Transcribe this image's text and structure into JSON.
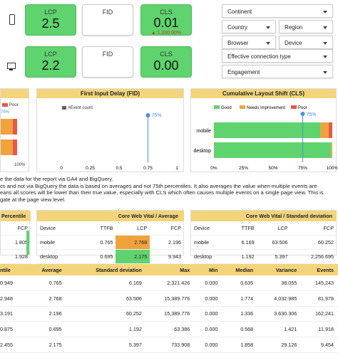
{
  "tiles": {
    "mobile": {
      "lcp_label": "LCP",
      "lcp_value": "2.5",
      "fid_label": "FID",
      "cls_label": "CLS",
      "cls_value": "0.01",
      "cls_change": "▲ 1,200.00%"
    },
    "desktop": {
      "lcp_label": "LCP",
      "lcp_value": "2.2",
      "fid_label": "FID",
      "cls_label": "CLS",
      "cls_value": "0.00"
    }
  },
  "filters": {
    "continent": "Continent",
    "country": "Country",
    "region": "Region",
    "browser": "Browser",
    "device": "Device",
    "connection": "Effective connection type",
    "engagement": "Engagement"
  },
  "lcp_chart": {
    "legend_poor": "Poor",
    "marker": "75%",
    "tick_end": "100%"
  },
  "fid_chart": {
    "title": "First Input Delay (FID)",
    "legend": "#Event count",
    "marker": "75%",
    "ticks": [
      "0",
      "0.25",
      "0.5",
      "0.75",
      "1"
    ],
    "marker_value": 0.75
  },
  "cls_chart": {
    "title": "Cumulative Layout Shift (CLS)",
    "legend": [
      "Good",
      "Needs Improvement",
      "Poor"
    ],
    "legend_colors": [
      "#5fd36d",
      "#f0a33c",
      "#e8574b"
    ],
    "categories": [
      "mobile",
      "desktop"
    ],
    "good": [
      0.9,
      0.99
    ],
    "needs": [
      0.07,
      0.01
    ],
    "poor": [
      0.03,
      0.0
    ],
    "ticks": [
      "0%",
      "25%",
      "50%",
      "75%",
      "100%"
    ],
    "marker": "75%"
  },
  "notes": [
    "e the data for the report via GA4 and BigQuery.",
    "cs and not via BigQuery the data is based on averages and not 75th percentiles. It also averages the value when multiple events are",
    "eans all scores will be lower than their true value, especially with CLS which often causes multiple events on a single page view. This is",
    "gate at the page view level."
  ],
  "percentile_table": {
    "title": "Percentile",
    "col": "FCP",
    "rows": [
      "1.805",
      "1.928"
    ]
  },
  "avg_table": {
    "title": "Core Web Vital / Average",
    "cols": [
      "Device",
      "TTFB",
      "LCP",
      "FCP"
    ],
    "rows": [
      [
        "mobile",
        "0.765",
        "2.768",
        "2.196"
      ],
      [
        "desktop",
        "0.695",
        "2.175",
        "9.943"
      ]
    ]
  },
  "std_table": {
    "title": "Core Web Vital / Standard deviation",
    "cols": [
      "Device",
      "TTFB",
      "LCP",
      "FCP"
    ],
    "rows": [
      [
        "mobile",
        "6.169",
        "63.506",
        "60.252"
      ],
      [
        "desktop",
        "1.192",
        "5.397",
        "2,256.695"
      ]
    ]
  },
  "bottom_table": {
    "cols": [
      "ntile",
      "Average",
      "Standard deviation",
      "Max",
      "Min",
      "Median",
      "Variance",
      "Events"
    ],
    "rows": [
      [
        "0.949",
        "0.765",
        "6.169",
        "2,321.426",
        "0.000",
        "0.635",
        "38.055",
        "145,243"
      ],
      [
        "2.948",
        "2.768",
        "63.506",
        "15,389.776",
        "0.000",
        "1.774",
        "4,032.985",
        "81,978"
      ],
      [
        "3.191",
        "2.196",
        "60.252",
        "15,389.776",
        "0.000",
        "1.336",
        "3,630.306",
        "162,241"
      ],
      [
        "0.875",
        "0.695",
        "1.192",
        "63.386",
        "0.000",
        "0.568",
        "1.421",
        "11,918"
      ],
      [
        "2.455",
        "2.175",
        "5.397",
        "733.908",
        "0.000",
        "1.858",
        "29.126",
        "9,454"
      ]
    ]
  }
}
